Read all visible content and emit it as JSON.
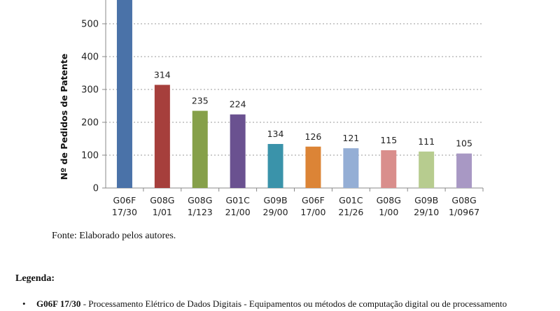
{
  "chart_data": {
    "type": "bar",
    "categories": [
      "G06F\n17/30",
      "G08G\n1/01",
      "G08G\n1/123",
      "G01C\n21/00",
      "G09B\n29/00",
      "G06F\n17/00",
      "G01C\n21/26",
      "G08G\n1/00",
      "G09B\n29/10",
      "G08G\n1/0967"
    ],
    "values": [
      null,
      314,
      235,
      224,
      134,
      126,
      121,
      115,
      111,
      105
    ],
    "data_labels": [
      "",
      "314",
      "235",
      "224",
      "134",
      "126",
      "121",
      "115",
      "111",
      "105"
    ],
    "colors": [
      "#4a72a8",
      "#a63f3c",
      "#86a04a",
      "#6a5190",
      "#3a93aa",
      "#dc8436",
      "#94aed5",
      "#d98e8c",
      "#b7cc8f",
      "#a898c4"
    ],
    "ylabel": "Nº de Pedidos de Patente",
    "xlabel": "",
    "yticks": [
      0,
      100,
      200,
      300,
      400,
      500
    ],
    "ylim": [
      0,
      580
    ],
    "grid": true
  },
  "source": "Fonte: Elaborado pelos autores.",
  "legend": {
    "title": "Legenda:",
    "items": [
      {
        "code": "G06F 17/30",
        "text": " - Processamento Elétrico de Dados Digitais - Equipamentos ou métodos de computação digital ou de processamento"
      }
    ]
  }
}
